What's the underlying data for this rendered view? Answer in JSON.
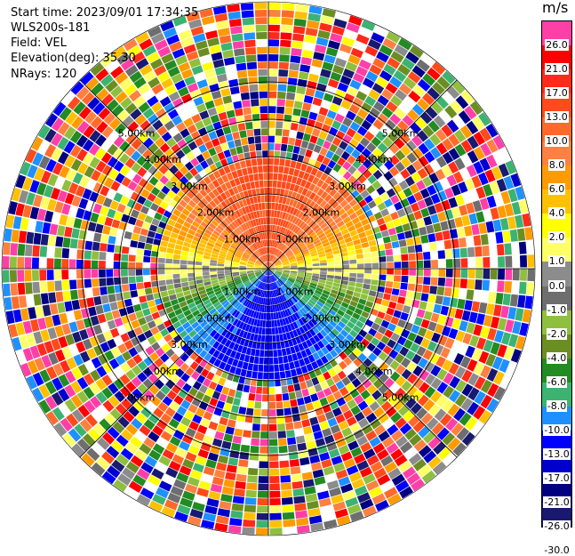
{
  "header": {
    "start_time": "Start time: 2023/09/01 17:34:35",
    "instrument": "WLS200s-181",
    "field": "Field: VEL",
    "elevation": "Elevation(deg): 35.30",
    "nrays": "NRays: 120"
  },
  "colorbar": {
    "unit": "m/s",
    "levels": [
      "26.0",
      "21.0",
      "17.0",
      "13.0",
      "10.0",
      "8.0",
      "6.0",
      "4.0",
      "2.0",
      "1.0",
      "0.0",
      "-1.0",
      "-2.0",
      "-4.0",
      "-6.0",
      "-8.0",
      "-10.0",
      "-13.0",
      "-17.0",
      "-21.0",
      "-26.0",
      "-30.0"
    ],
    "colors": [
      "#ff3fa8",
      "#ff0000",
      "#ff2a1a",
      "#ff4a1a",
      "#ff6a2a",
      "#ff8040",
      "#ff9a00",
      "#ffc000",
      "#ffff00",
      "#ffff66",
      "#8c8c8c",
      "#6e6e6e",
      "#8fbf3f",
      "#6b8e23",
      "#228b22",
      "#3cb371",
      "#1e90ff",
      "#0000ff",
      "#0000cd",
      "#000080",
      "#191970"
    ]
  },
  "chart_data": {
    "type": "heatmap",
    "plot_kind": "radar PPI (plan position indicator)",
    "field": "VEL",
    "units": "m/s",
    "elevation_deg": 35.3,
    "nrays": 120,
    "range_rings": [
      {
        "label": "1.00km",
        "km": 1.0
      },
      {
        "label": "2.00km",
        "km": 2.0
      },
      {
        "label": "3.00km",
        "km": 3.0
      },
      {
        "label": "4.00km",
        "km": 4.0
      },
      {
        "label": "5.00km",
        "km": 5.0
      }
    ],
    "max_range_km": 5.6,
    "valid_range_km": 3.0,
    "pattern": "positive velocities (red/orange) to the north, near-zero (grey/yellow) band along east-west axis, negative velocities (blue) to the south; noisy random values beyond ~3 km",
    "clim": [
      -30.0,
      26.0
    ]
  }
}
